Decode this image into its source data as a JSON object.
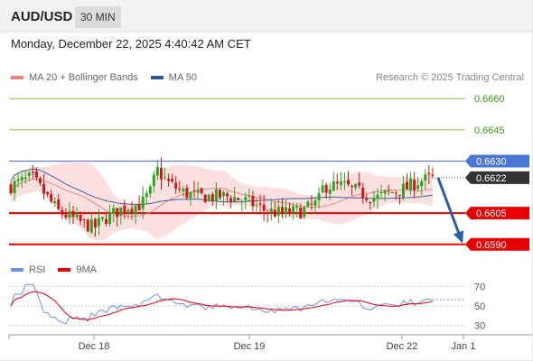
{
  "header": {
    "symbol": "AUD/USD",
    "timeframe": "30 MIN"
  },
  "datetime": "Monday, December 22, 2025 4:40:42 AM CET",
  "legend": {
    "ma20": "MA 20 + Bollinger Bands",
    "ma50": "MA 50",
    "credit": "Research © 2025 Trading Central"
  },
  "rsi_legend": {
    "rsi": "RSI",
    "ma9": "9MA"
  },
  "colors": {
    "up": "#27a822",
    "down": "#d01717",
    "band": "#fbd6d6",
    "ma20": "#e98b8b",
    "ma50": "#3a5f9e",
    "resistance": "#8bc34a",
    "pivot": "#4a77d4",
    "support": "#e80000",
    "arrow": "#2b5fa8",
    "current": "#333333",
    "rsi": "#6f8fe8",
    "rsi_ma": "#e80000"
  },
  "chart_data": [
    {
      "type": "candlestick",
      "title": "AUD/USD 30 MIN",
      "ylim": [
        0.6586,
        0.6664
      ],
      "x_ticks": [
        "Dec 18",
        "Dec 19",
        "Dec 22",
        "Jan 1"
      ],
      "levels": [
        {
          "value": 0.666,
          "label": "0.6660",
          "kind": "resistance"
        },
        {
          "value": 0.6645,
          "label": "0.6645",
          "kind": "resistance"
        },
        {
          "value": 0.663,
          "label": "0.6630",
          "kind": "pivot"
        },
        {
          "value": 0.6605,
          "label": "0.6605",
          "kind": "support"
        },
        {
          "value": 0.659,
          "label": "0.6590",
          "kind": "support"
        }
      ],
      "current_price": {
        "value": 0.6622,
        "label": "0.6622"
      },
      "projection": {
        "from": 0.6622,
        "to": 0.659,
        "direction": "down"
      },
      "series": [
        {
          "name": "MA 20 + Bollinger Bands"
        },
        {
          "name": "MA 50"
        }
      ]
    },
    {
      "type": "line",
      "title": "RSI",
      "ylim": [
        25,
        75
      ],
      "y_ticks": [
        70,
        50,
        30
      ],
      "series": [
        {
          "name": "RSI"
        },
        {
          "name": "9MA"
        }
      ]
    }
  ]
}
